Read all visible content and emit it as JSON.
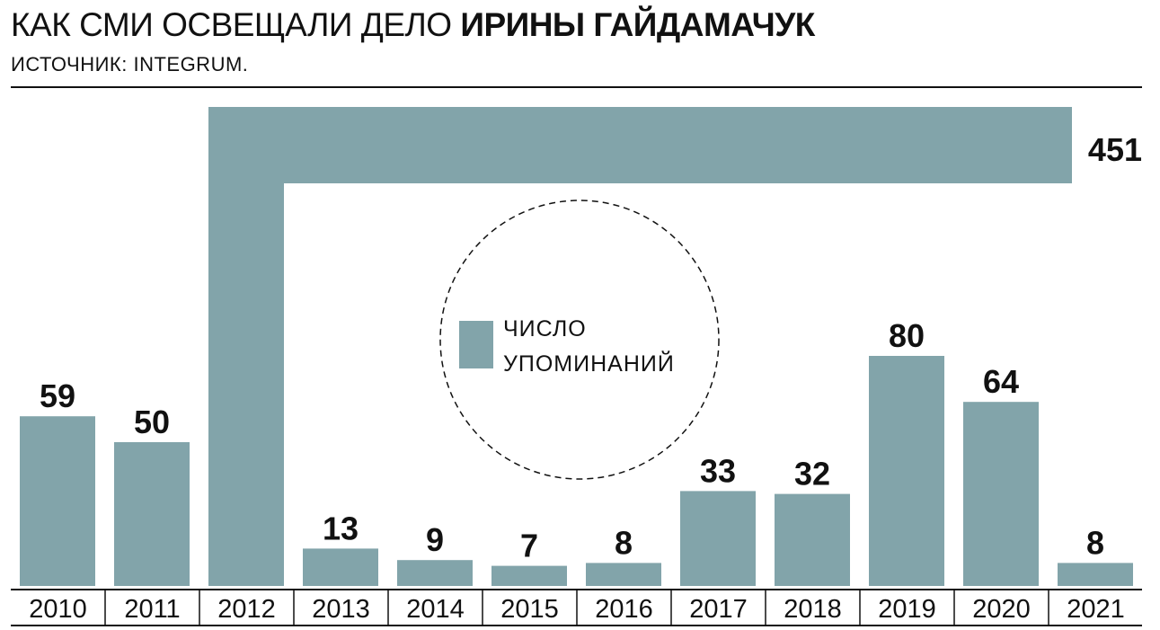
{
  "header": {
    "title_regular": "КАК СМИ ОСВЕЩАЛИ ДЕЛО ",
    "title_bold": "ИРИНЫ ГАЙДАМАЧУК",
    "subtitle": "ИСТОЧНИК: INTEGRUM."
  },
  "legend": {
    "line1": "ЧИСЛО",
    "line2": "УПОМИНАНИЙ"
  },
  "colors": {
    "bar": "#82a4aa",
    "text": "#111111",
    "rule": "#111111"
  },
  "chart_data": {
    "type": "bar",
    "title": "КАК СМИ ОСВЕЩАЛИ ДЕЛО ИРИНЫ ГАЙДАМАЧУК",
    "subtitle": "ИСТОЧНИК: INTEGRUM.",
    "categories": [
      "2010",
      "2011",
      "2012",
      "2013",
      "2014",
      "2015",
      "2016",
      "2017",
      "2018",
      "2019",
      "2020",
      "2021"
    ],
    "series": [
      {
        "name": "ЧИСЛО УПОМИНАНИЙ",
        "values": [
          59,
          50,
          451,
          13,
          9,
          7,
          8,
          33,
          32,
          80,
          64,
          8
        ]
      }
    ],
    "value_labels": [
      "59",
      "50",
      "451",
      "13",
      "9",
      "7",
      "8",
      "33",
      "32",
      "80",
      "64",
      "8"
    ],
    "broken_bar_category": "2012",
    "data_labels": true,
    "grid": false,
    "legend_position": "center"
  }
}
